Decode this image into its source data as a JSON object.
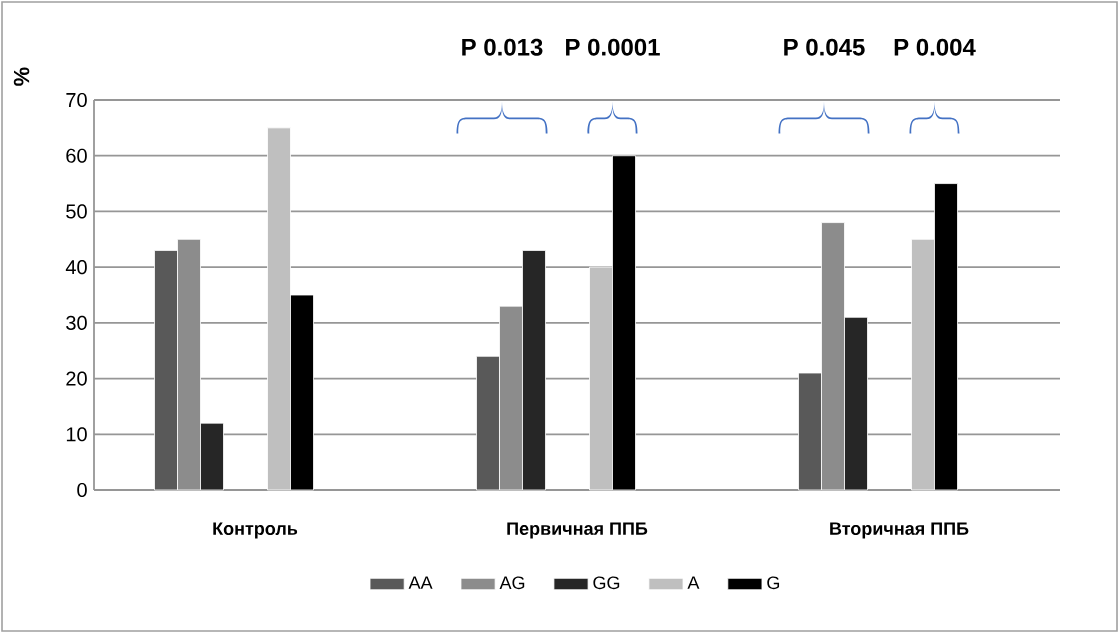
{
  "chart_data": {
    "type": "bar",
    "categories": [
      "Контроль",
      "Первичная ППБ",
      "Вторичная ППБ"
    ],
    "series": [
      {
        "name": "AA",
        "color": "#595959",
        "values": [
          43,
          24,
          21
        ]
      },
      {
        "name": "AG",
        "color": "#8c8c8c",
        "values": [
          45,
          33,
          48
        ]
      },
      {
        "name": "GG",
        "color": "#262626",
        "values": [
          12,
          43,
          31
        ]
      },
      {
        "name": "A",
        "color": "#bfbfbf",
        "values": [
          65,
          40,
          45
        ]
      },
      {
        "name": "G",
        "color": "#000000",
        "values": [
          35,
          60,
          55
        ]
      }
    ],
    "ylabel": "%",
    "ylim": [
      0,
      70
    ],
    "yticks": [
      0,
      10,
      20,
      30,
      40,
      50,
      60,
      70
    ],
    "grid": "y",
    "legend": "bottom",
    "annotations": [
      "P 0.013",
      "P 0.0001",
      "P 0.045",
      "P 0.004"
    ]
  }
}
